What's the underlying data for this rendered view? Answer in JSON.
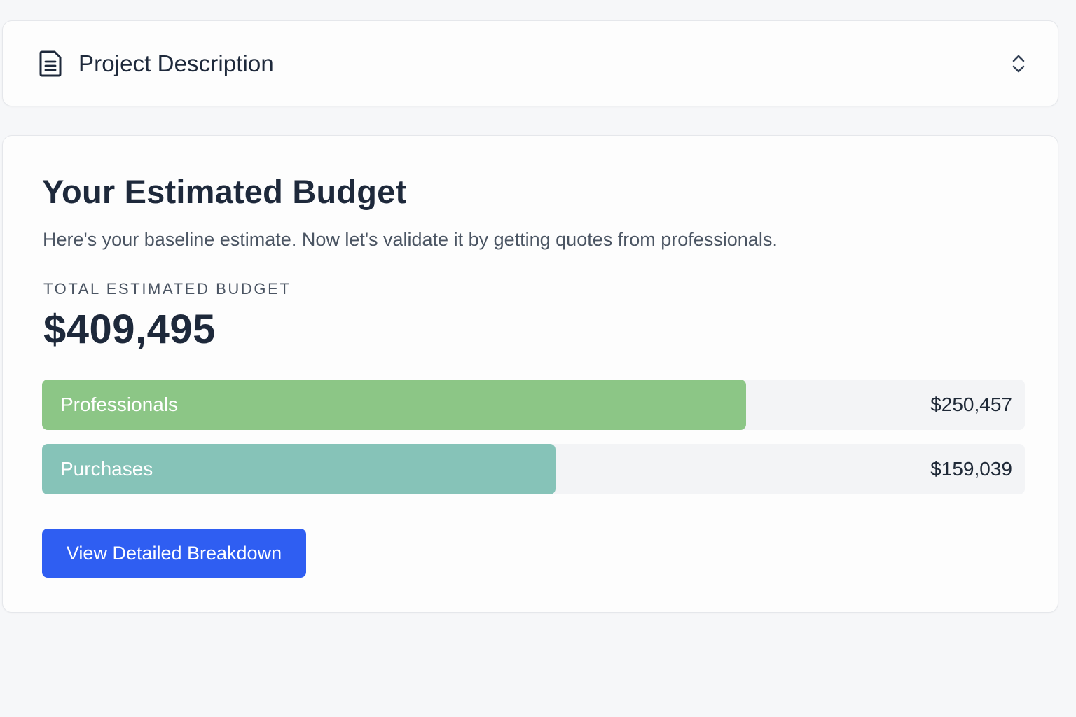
{
  "project_description": {
    "title": "Project Description",
    "icon": "document-icon",
    "toggle_icon": "chevron-up-down-icon"
  },
  "budget": {
    "title": "Your Estimated Budget",
    "subtitle": "Here's your baseline estimate. Now let's validate it by getting quotes from professionals.",
    "total_label": "TOTAL ESTIMATED BUDGET",
    "total_value": "$409,495",
    "bars": [
      {
        "label": "Professionals",
        "amount": "$250,457",
        "fraction": 0.7161,
        "color": "#8cc686"
      },
      {
        "label": "Purchases",
        "amount": "$159,039",
        "fraction": 0.5228,
        "color": "#86c3b8"
      }
    ],
    "cta_label": "View Detailed Breakdown"
  },
  "colors": {
    "accent": "#2f5ef2",
    "page_background": "#f6f7f9",
    "track": "#f3f4f6"
  }
}
